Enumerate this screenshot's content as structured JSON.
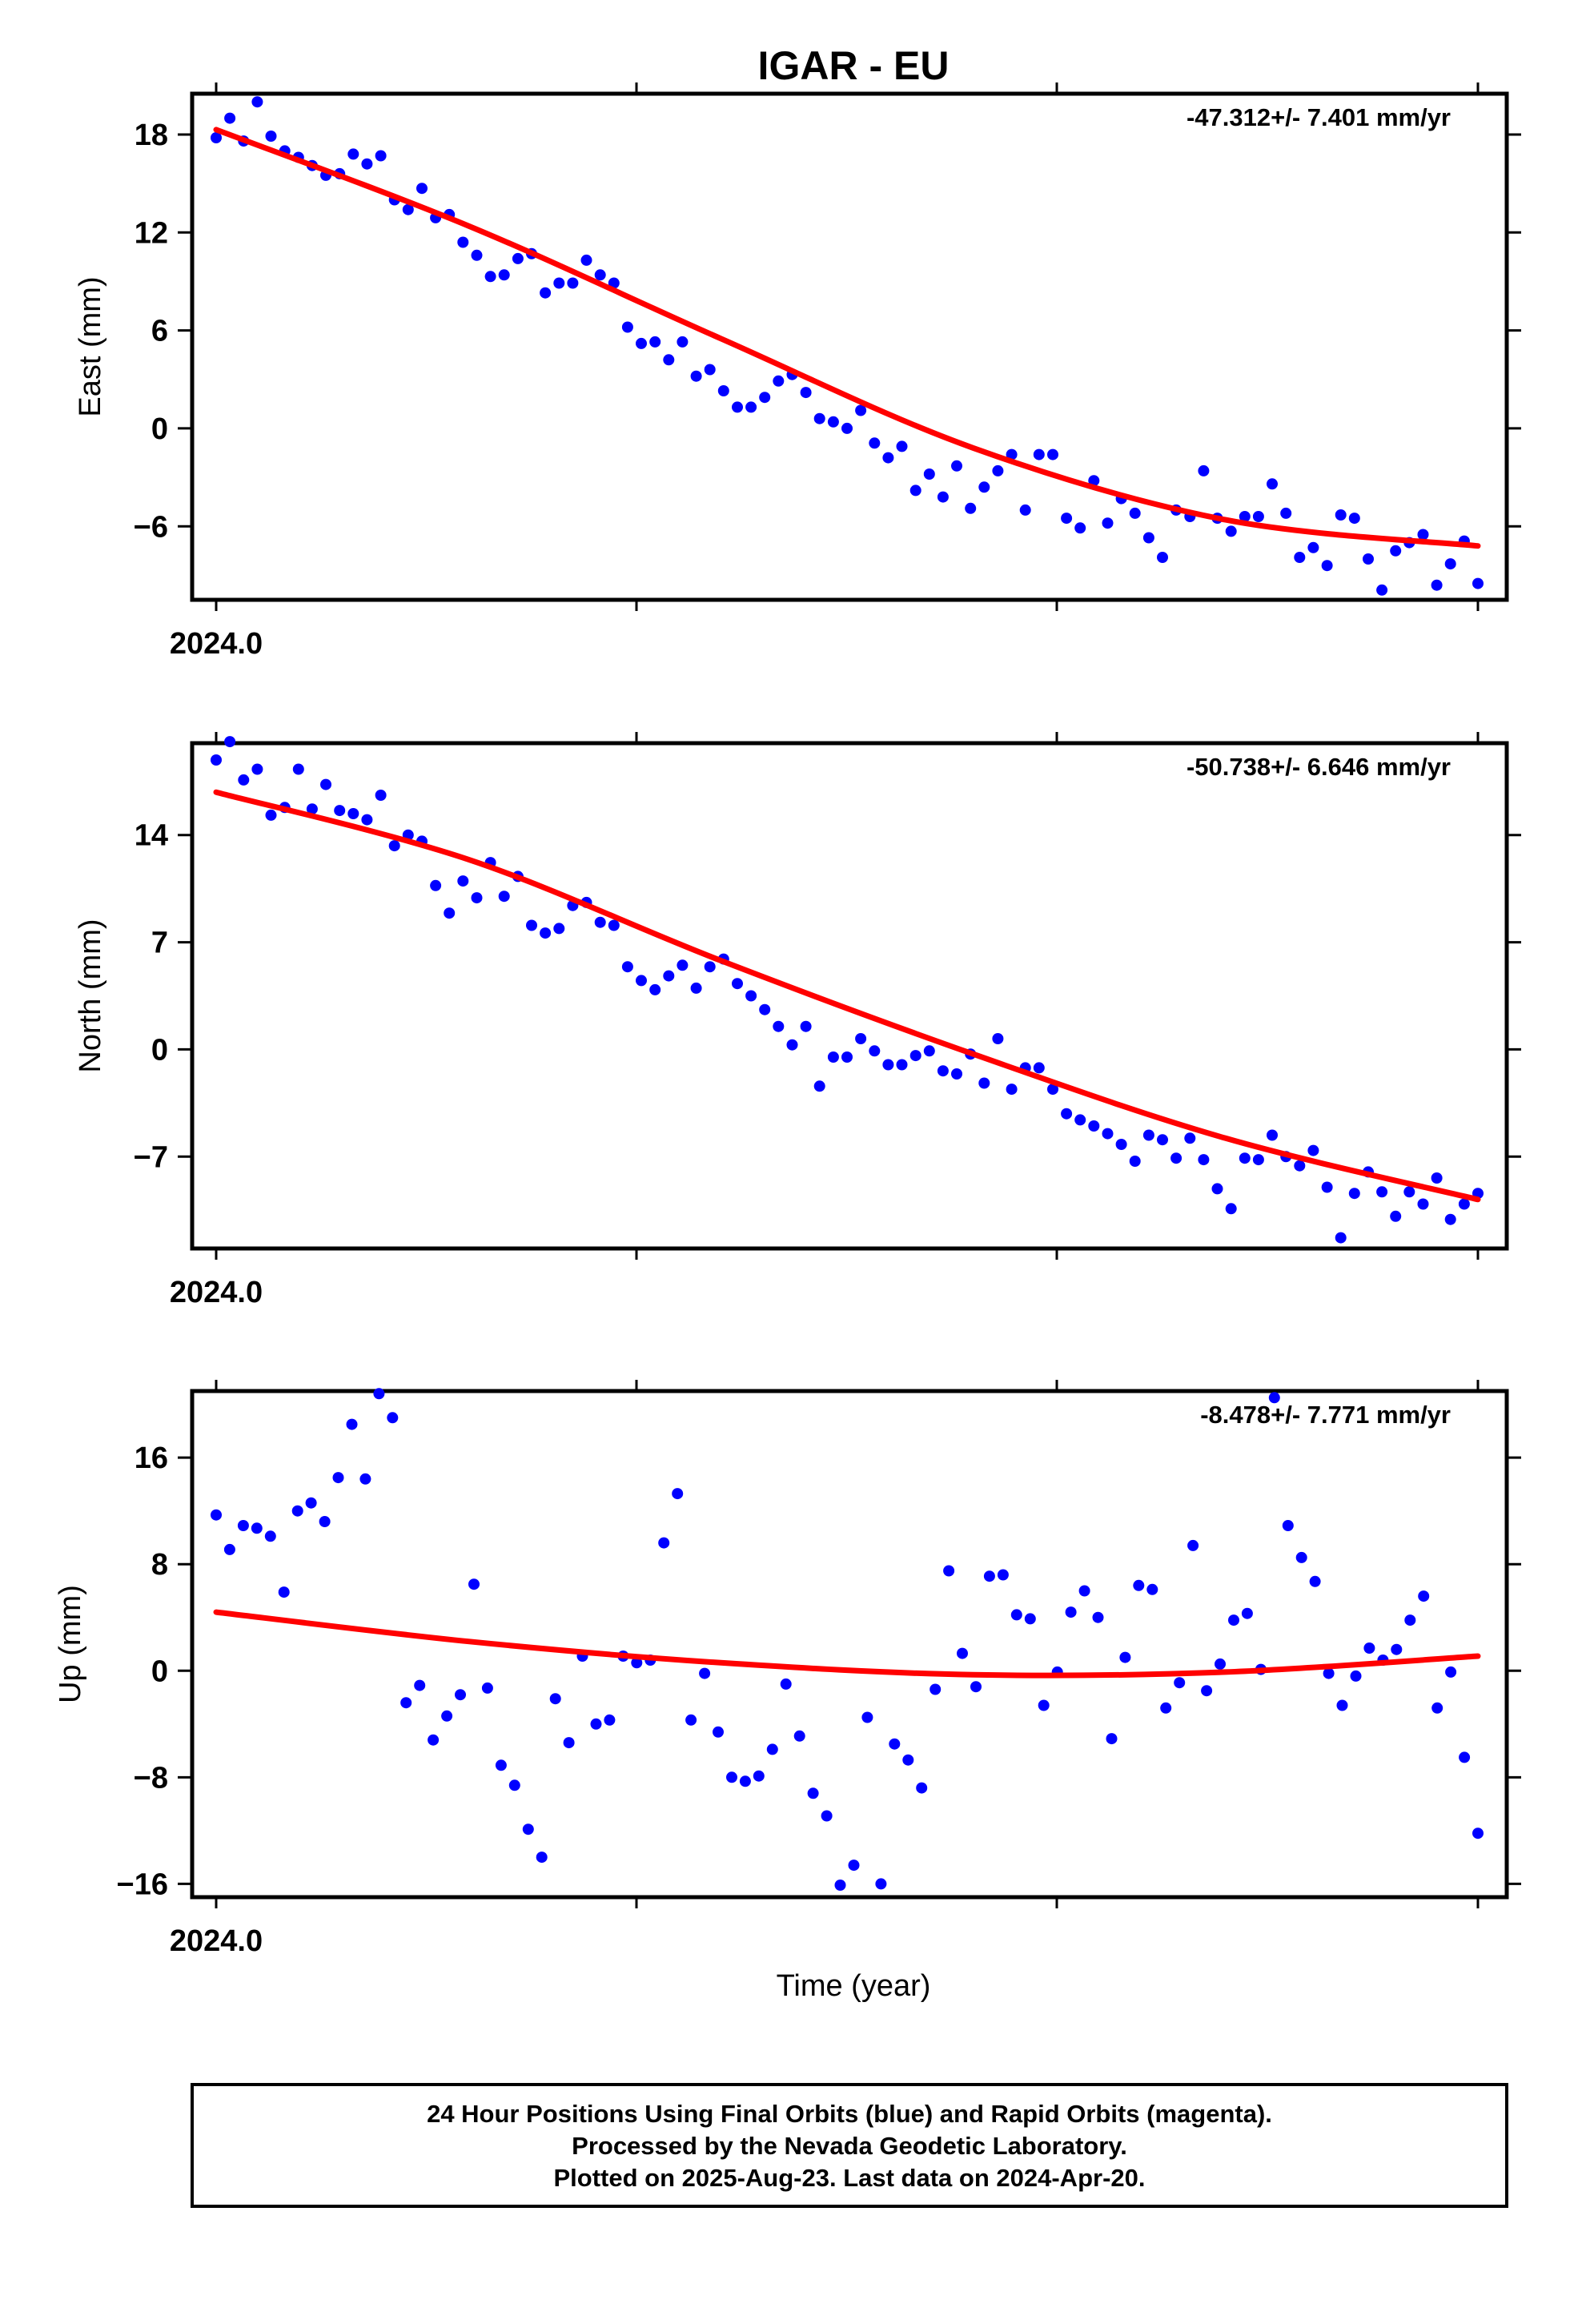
{
  "title": "IGAR - EU",
  "xlabel": "Time (year)",
  "footer": [
    "24 Hour Positions Using Final Orbits (blue) and Rapid Orbits (magenta).",
    "Processed by the Nevada Geodetic Laboratory.",
    "Plotted on 2025-Aug-23. Last data on 2024-Apr-20."
  ],
  "colors": {
    "final": "#0000ff",
    "fit": "#ff0000",
    "frame": "#000000"
  },
  "chart_data": [
    {
      "type": "scatter",
      "ylabel": "East (mm)",
      "rate": "-47.312+/- 7.401 mm/yr",
      "x_tick_label": "2024.0",
      "ylim": [
        -10.5,
        20.5
      ],
      "yticks": [
        18,
        12,
        6,
        0,
        -6
      ],
      "fit": [
        18.3,
        12.4,
        5.5,
        -1.2,
        -5.6,
        -7.2
      ],
      "points": [
        17.8,
        19.0,
        17.6,
        20.0,
        17.9,
        17.0,
        16.6,
        16.1,
        15.5,
        15.6,
        16.8,
        16.2,
        16.7,
        14.0,
        13.4,
        14.7,
        12.9,
        13.1,
        11.4,
        10.6,
        9.3,
        9.4,
        10.4,
        10.7,
        8.3,
        8.9,
        8.9,
        10.3,
        9.4,
        8.9,
        6.2,
        5.2,
        5.3,
        4.2,
        5.3,
        3.2,
        3.6,
        2.3,
        1.3,
        1.3,
        1.9,
        2.9,
        3.3,
        2.2,
        0.6,
        0.4,
        0.0,
        1.1,
        -0.9,
        -1.8,
        -1.1,
        -3.8,
        -2.8,
        -4.2,
        -2.3,
        -4.9,
        -3.6,
        -2.6,
        -1.6,
        -5.0,
        -1.6,
        -1.6,
        -5.5,
        -6.1,
        -3.2,
        -5.8,
        -4.3,
        -5.2,
        -6.7,
        -7.9,
        -5.0,
        -5.4,
        -2.6,
        -5.5,
        -6.3,
        -5.4,
        -5.4,
        -3.4,
        -5.2,
        -7.9,
        -7.3,
        -8.4,
        -5.3,
        -5.5,
        -8.0,
        -9.9,
        -7.5,
        -7.0,
        -6.5,
        -9.6,
        -8.3,
        -6.9,
        -9.5
      ]
    },
    {
      "type": "scatter",
      "ylabel": "North (mm)",
      "rate": "-50.738+/- 6.646 mm/yr",
      "x_tick_label": "2024.0",
      "ylim": [
        -13.0,
        20.0
      ],
      "yticks": [
        14,
        7,
        0,
        -7
      ],
      "fit": [
        16.8,
        12.4,
        5.8,
        -0.3,
        -5.8,
        -9.8
      ],
      "points": [
        18.9,
        20.1,
        17.6,
        18.3,
        15.3,
        15.8,
        18.3,
        15.7,
        17.3,
        15.6,
        15.4,
        15.0,
        16.6,
        13.3,
        14.0,
        13.6,
        10.7,
        8.9,
        11.0,
        9.9,
        12.2,
        10.0,
        11.3,
        8.1,
        7.6,
        7.9,
        9.4,
        9.6,
        8.3,
        8.1,
        5.4,
        4.5,
        3.9,
        4.8,
        5.5,
        4.0,
        5.4,
        5.9,
        4.3,
        3.5,
        2.6,
        1.5,
        0.3,
        1.5,
        -2.4,
        -0.5,
        -0.5,
        0.7,
        -0.1,
        -1.0,
        -1.0,
        -0.4,
        -0.1,
        -1.4,
        -1.6,
        -0.3,
        -2.2,
        0.7,
        -2.6,
        -1.2,
        -1.2,
        -2.6,
        -4.2,
        -4.6,
        -5.0,
        -5.5,
        -6.2,
        -7.3,
        -5.6,
        -5.9,
        -7.1,
        -5.8,
        -7.2,
        -9.1,
        -10.4,
        -7.1,
        -7.2,
        -5.6,
        -7.0,
        -7.6,
        -6.6,
        -9.0,
        -12.3,
        -9.4,
        -8.0,
        -9.3,
        -10.9,
        -9.3,
        -10.1,
        -8.4,
        -11.1,
        -10.1,
        -9.4
      ]
    },
    {
      "type": "scatter",
      "ylabel": "Up (mm)",
      "rate": "-8.478+/- 7.771 mm/yr",
      "x_tick_label": "2024.0",
      "ylim": [
        -17.0,
        21.0
      ],
      "yticks": [
        16,
        8,
        0,
        -8,
        -16
      ],
      "fit": [
        4.4,
        2.2,
        0.6,
        -0.3,
        -0.1,
        1.1
      ],
      "points": [
        11.7,
        9.1,
        10.9,
        10.7,
        10.1,
        5.9,
        12.0,
        12.6,
        11.2,
        14.5,
        18.5,
        14.4,
        20.8,
        19.0,
        -2.4,
        -1.1,
        -5.2,
        -3.4,
        -1.8,
        6.5,
        -1.3,
        -7.1,
        -8.6,
        -11.9,
        -14.0,
        -2.1,
        -5.4,
        1.1,
        -4.0,
        -3.7,
        1.1,
        0.6,
        0.8,
        9.6,
        13.3,
        -3.7,
        -0.2,
        -4.6,
        -8.0,
        -8.3,
        -7.9,
        -5.9,
        -1.0,
        -4.9,
        -9.2,
        -10.9,
        -16.1,
        -14.6,
        -3.5,
        -16.0,
        -5.5,
        -6.7,
        -8.8,
        -1.4,
        7.5,
        1.3,
        -1.2,
        7.1,
        7.2,
        4.2,
        3.9,
        -2.6,
        -0.1,
        4.4,
        6.0,
        4.0,
        -5.1,
        1.0,
        6.4,
        6.1,
        -2.8,
        -0.9,
        9.4,
        -1.5,
        0.5,
        3.8,
        4.3,
        0.1,
        20.5,
        10.9,
        8.5,
        6.7,
        -0.2,
        -2.6,
        -0.4,
        1.7,
        0.8,
        1.6,
        3.8,
        5.6,
        -2.8,
        -0.1,
        -6.5,
        -12.2
      ]
    }
  ]
}
